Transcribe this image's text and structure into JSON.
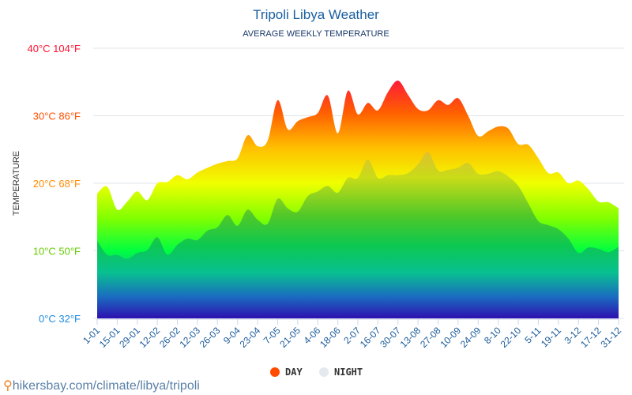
{
  "chart_data": {
    "type": "area",
    "title": "Tripoli Libya Weather",
    "subtitle": "AVERAGE WEEKLY TEMPERATURE",
    "ylabel": "TEMPERATURE",
    "ylim": [
      0,
      40
    ],
    "grid": true,
    "y_ticks": [
      {
        "value": 0,
        "label": "0°C 32°F",
        "color": "#1f8ce0"
      },
      {
        "value": 10,
        "label": "10°C 50°F",
        "color": "#66cc00"
      },
      {
        "value": 20,
        "label": "20°C 68°F",
        "color": "#ff8c00"
      },
      {
        "value": 30,
        "label": "30°C 86°F",
        "color": "#ff5000"
      },
      {
        "value": 40,
        "label": "40°C 104°F",
        "color": "#ff1030"
      }
    ],
    "x_tick_labels": [
      "1-01",
      "15-01",
      "29-01",
      "12-02",
      "26-02",
      "12-03",
      "26-03",
      "9-04",
      "23-04",
      "7-05",
      "21-05",
      "4-06",
      "18-06",
      "2-07",
      "16-07",
      "30-07",
      "13-08",
      "27-08",
      "10-09",
      "24-09",
      "8-10",
      "22-10",
      "5-11",
      "19-11",
      "3-12",
      "17-12",
      "31-12"
    ],
    "legend_position": "bottom",
    "series": [
      {
        "name": "DAY",
        "color": "#ff4a00",
        "values": [
          18.5,
          19.5,
          16.1,
          17.3,
          18.8,
          17.5,
          20,
          20.2,
          21.2,
          20.6,
          21.6,
          22.3,
          22.9,
          23.3,
          23.7,
          27.1,
          25.5,
          26.3,
          32.3,
          28,
          29.2,
          29.8,
          30.4,
          33,
          27.4,
          33.7,
          30.2,
          31.9,
          30.8,
          33.5,
          35.2,
          33.1,
          31,
          30.8,
          32.3,
          31.6,
          32.6,
          30,
          27,
          27.7,
          28.4,
          28.1,
          25.8,
          25.7,
          23.7,
          21.5,
          21.6,
          20,
          20.4,
          19.1,
          17.3,
          17.2,
          16.3
        ]
      },
      {
        "name": "NIGHT",
        "color": "#e4e9f0",
        "values": [
          11.5,
          9.4,
          9.4,
          8.8,
          9.7,
          10.1,
          12,
          9.4,
          10.9,
          11.8,
          11.6,
          13,
          13.5,
          15.3,
          13.7,
          16.1,
          14.6,
          14,
          17.7,
          16.3,
          15.8,
          18.1,
          18.8,
          19.6,
          18.6,
          20.8,
          20.8,
          23.5,
          20.8,
          21.2,
          21.2,
          21.5,
          22.8,
          24.6,
          21.9,
          22,
          22.3,
          23,
          21.4,
          21.4,
          21.8,
          21,
          19.6,
          17,
          14.4,
          13.8,
          13.2,
          11.8,
          9.7,
          10.5,
          10.3,
          9.8,
          10.6
        ]
      }
    ]
  },
  "source": {
    "text": "hikersbay.com/climate/libya/tripoli",
    "icon": "map-pin-icon"
  }
}
